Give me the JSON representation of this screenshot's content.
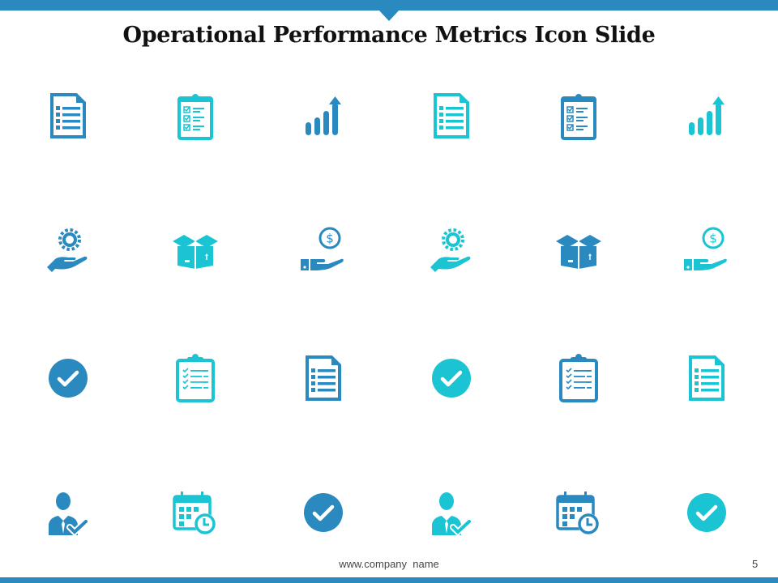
{
  "slide": {
    "title": "Operational Performance Metrics Icon Slide",
    "footer": "www.company  name",
    "page_number": "5"
  },
  "colors": {
    "primary": "#2a8abf",
    "secondary": "#1bc4d3",
    "title": "#111111"
  },
  "icon_rows": [
    [
      {
        "icon": "document-list-icon",
        "color": "primary"
      },
      {
        "icon": "clipboard-checklist-icon",
        "color": "secondary"
      },
      {
        "icon": "growth-chart-icon",
        "color": "primary"
      },
      {
        "icon": "document-list-icon",
        "color": "secondary"
      },
      {
        "icon": "clipboard-checklist-icon",
        "color": "primary"
      },
      {
        "icon": "growth-chart-icon",
        "color": "secondary"
      }
    ],
    [
      {
        "icon": "hand-gear-icon",
        "color": "primary"
      },
      {
        "icon": "open-box-icon",
        "color": "secondary"
      },
      {
        "icon": "hand-dollar-icon",
        "color": "primary"
      },
      {
        "icon": "hand-gear-icon",
        "color": "secondary"
      },
      {
        "icon": "open-box-icon",
        "color": "primary"
      },
      {
        "icon": "hand-dollar-icon",
        "color": "secondary"
      }
    ],
    [
      {
        "icon": "check-circle-icon",
        "color": "primary"
      },
      {
        "icon": "clipboard-tasks-icon",
        "color": "secondary"
      },
      {
        "icon": "document-list-icon",
        "color": "primary"
      },
      {
        "icon": "check-circle-icon",
        "color": "secondary"
      },
      {
        "icon": "clipboard-tasks-icon",
        "color": "primary"
      },
      {
        "icon": "document-list-icon",
        "color": "secondary"
      }
    ],
    [
      {
        "icon": "person-check-icon",
        "color": "primary"
      },
      {
        "icon": "calendar-clock-icon",
        "color": "secondary"
      },
      {
        "icon": "check-circle-icon",
        "color": "primary"
      },
      {
        "icon": "person-check-icon",
        "color": "secondary"
      },
      {
        "icon": "calendar-clock-icon",
        "color": "primary"
      },
      {
        "icon": "check-circle-icon",
        "color": "secondary"
      }
    ]
  ]
}
